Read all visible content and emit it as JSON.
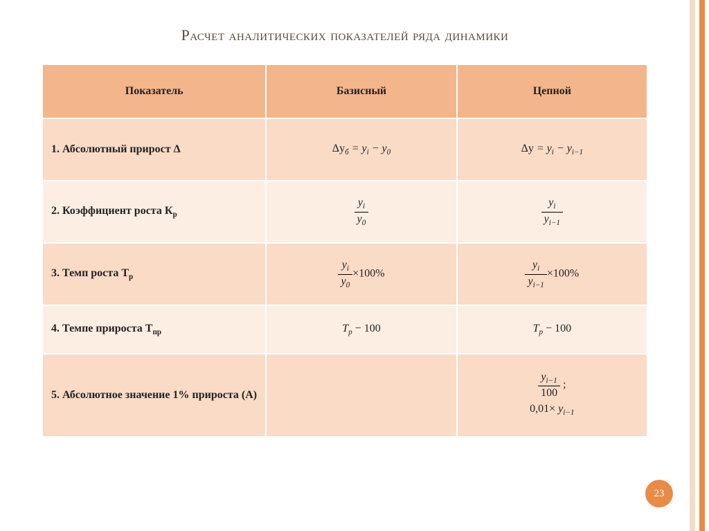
{
  "title": "Расчет аналитических показателей ряда динамики",
  "columns": {
    "c1": "Показатель",
    "c2": "Базисный",
    "c3": "Цепной"
  },
  "rows": {
    "r1": {
      "label": "1. Абсолютный прирост Δ"
    },
    "r2": {
      "label": "2. Коэффициент роста К",
      "label_sub": "р"
    },
    "r3": {
      "label": "3. Темп роста Т",
      "label_sub": "р"
    },
    "r4": {
      "label": "4. Темпе прироста Т",
      "label_sub": "пр"
    },
    "r5": {
      "label": "5. Абсолютное значение 1% прироста (А)"
    }
  },
  "formulas": {
    "r1b_lhs": "Δy",
    "r1b_lhs_sub": "б",
    "eq": " = ",
    "yi": "y",
    "yi_sub": "i",
    "minus": " − ",
    "y0": "y",
    "y0_sub": "0",
    "r1c_lhs": "Δy",
    "yim1": "y",
    "yim1_sub": "i−1",
    "times100": "×100%",
    "Tp": "T",
    "Tp_sub": "р",
    "minus100": " − 100",
    "hundred": "100",
    "semicolon": " ;",
    "coef": "0,01× "
  },
  "page_number": "23",
  "colors": {
    "header_bg": "#f3b58a",
    "row_odd": "#f9dbc6",
    "row_even": "#fceee3",
    "accent": "#e88b47",
    "stripe_light": "#f6dcc8"
  }
}
